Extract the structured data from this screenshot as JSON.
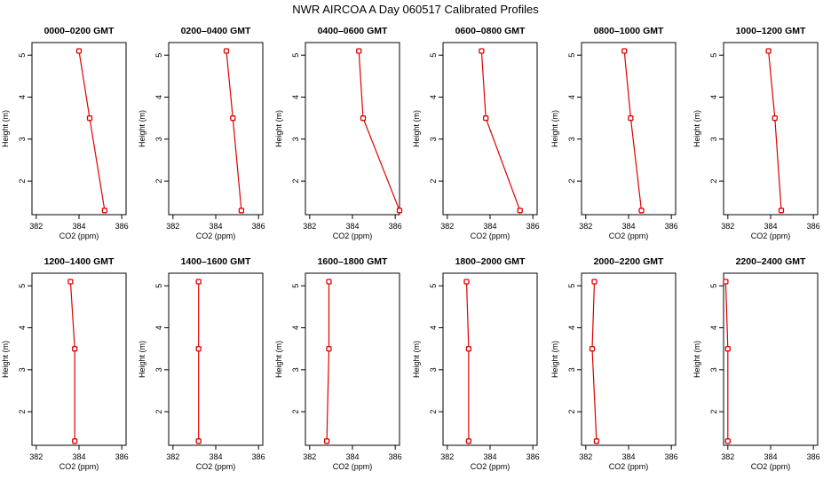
{
  "title": "NWR AIRCOA A  Day 060517  Calibrated Profiles",
  "colors": {
    "series": "#dd0000",
    "background": "#ffffff",
    "axes": "#000000"
  },
  "chart_data": [
    {
      "type": "line",
      "title": "0000–0200 GMT",
      "xlabel": "CO2 (ppm)",
      "ylabel": "Height (m)",
      "xlim": [
        381.8,
        386.2
      ],
      "ylim": [
        1.2,
        5.3
      ],
      "xticks": [
        "382",
        "384",
        "386"
      ],
      "yticks": [
        "2",
        "3",
        "4",
        "5"
      ],
      "points": [
        {
          "x": 384.0,
          "y": 5.1
        },
        {
          "x": 384.5,
          "y": 3.5
        },
        {
          "x": 385.2,
          "y": 1.3
        }
      ]
    },
    {
      "type": "line",
      "title": "0200–0400 GMT",
      "xlabel": "CO2 (ppm)",
      "ylabel": "Height (m)",
      "xlim": [
        381.8,
        386.2
      ],
      "ylim": [
        1.2,
        5.3
      ],
      "xticks": [
        "382",
        "384",
        "386"
      ],
      "yticks": [
        "2",
        "3",
        "4",
        "5"
      ],
      "points": [
        {
          "x": 384.5,
          "y": 5.1
        },
        {
          "x": 384.8,
          "y": 3.5
        },
        {
          "x": 385.2,
          "y": 1.3
        }
      ]
    },
    {
      "type": "line",
      "title": "0400–0600 GMT",
      "xlabel": "CO2 (ppm)",
      "ylabel": "Height (m)",
      "xlim": [
        381.8,
        386.2
      ],
      "ylim": [
        1.2,
        5.3
      ],
      "xticks": [
        "382",
        "384",
        "386"
      ],
      "yticks": [
        "2",
        "3",
        "4",
        "5"
      ],
      "points": [
        {
          "x": 384.3,
          "y": 5.1
        },
        {
          "x": 384.5,
          "y": 3.5
        },
        {
          "x": 386.2,
          "y": 1.3
        }
      ]
    },
    {
      "type": "line",
      "title": "0600–0800 GMT",
      "xlabel": "CO2 (ppm)",
      "ylabel": "Height (m)",
      "xlim": [
        381.8,
        386.2
      ],
      "ylim": [
        1.2,
        5.3
      ],
      "xticks": [
        "382",
        "384",
        "386"
      ],
      "yticks": [
        "2",
        "3",
        "4",
        "5"
      ],
      "points": [
        {
          "x": 383.6,
          "y": 5.1
        },
        {
          "x": 383.8,
          "y": 3.5
        },
        {
          "x": 385.4,
          "y": 1.3
        }
      ]
    },
    {
      "type": "line",
      "title": "0800–1000 GMT",
      "xlabel": "CO2 (ppm)",
      "ylabel": "Height (m)",
      "xlim": [
        381.8,
        386.2
      ],
      "ylim": [
        1.2,
        5.3
      ],
      "xticks": [
        "382",
        "384",
        "386"
      ],
      "yticks": [
        "2",
        "3",
        "4",
        "5"
      ],
      "points": [
        {
          "x": 383.8,
          "y": 5.1
        },
        {
          "x": 384.1,
          "y": 3.5
        },
        {
          "x": 384.6,
          "y": 1.3
        }
      ]
    },
    {
      "type": "line",
      "title": "1000–1200 GMT",
      "xlabel": "CO2 (ppm)",
      "ylabel": "Height (m)",
      "xlim": [
        381.8,
        386.2
      ],
      "ylim": [
        1.2,
        5.3
      ],
      "xticks": [
        "382",
        "384",
        "386"
      ],
      "yticks": [
        "2",
        "3",
        "4",
        "5"
      ],
      "points": [
        {
          "x": 383.9,
          "y": 5.1
        },
        {
          "x": 384.2,
          "y": 3.5
        },
        {
          "x": 384.5,
          "y": 1.3
        }
      ]
    },
    {
      "type": "line",
      "title": "1200–1400 GMT",
      "xlabel": "CO2 (ppm)",
      "ylabel": "Height (m)",
      "xlim": [
        381.8,
        386.2
      ],
      "ylim": [
        1.2,
        5.3
      ],
      "xticks": [
        "382",
        "384",
        "386"
      ],
      "yticks": [
        "2",
        "3",
        "4",
        "5"
      ],
      "points": [
        {
          "x": 383.6,
          "y": 5.1
        },
        {
          "x": 383.8,
          "y": 3.5
        },
        {
          "x": 383.8,
          "y": 1.3
        }
      ]
    },
    {
      "type": "line",
      "title": "1400–1600 GMT",
      "xlabel": "CO2 (ppm)",
      "ylabel": "Height (m)",
      "xlim": [
        381.8,
        386.2
      ],
      "ylim": [
        1.2,
        5.3
      ],
      "xticks": [
        "382",
        "384",
        "386"
      ],
      "yticks": [
        "2",
        "3",
        "4",
        "5"
      ],
      "points": [
        {
          "x": 383.2,
          "y": 5.1
        },
        {
          "x": 383.2,
          "y": 3.5
        },
        {
          "x": 383.2,
          "y": 1.3
        }
      ]
    },
    {
      "type": "line",
      "title": "1600–1800 GMT",
      "xlabel": "CO2 (ppm)",
      "ylabel": "Height (m)",
      "xlim": [
        381.8,
        386.2
      ],
      "ylim": [
        1.2,
        5.3
      ],
      "xticks": [
        "382",
        "384",
        "386"
      ],
      "yticks": [
        "2",
        "3",
        "4",
        "5"
      ],
      "points": [
        {
          "x": 382.9,
          "y": 5.1
        },
        {
          "x": 382.9,
          "y": 3.5
        },
        {
          "x": 382.8,
          "y": 1.3
        }
      ]
    },
    {
      "type": "line",
      "title": "1800–2000 GMT",
      "xlabel": "CO2 (ppm)",
      "ylabel": "Height (m)",
      "xlim": [
        381.8,
        386.2
      ],
      "ylim": [
        1.2,
        5.3
      ],
      "xticks": [
        "382",
        "384",
        "386"
      ],
      "yticks": [
        "2",
        "3",
        "4",
        "5"
      ],
      "points": [
        {
          "x": 382.9,
          "y": 5.1
        },
        {
          "x": 383.0,
          "y": 3.5
        },
        {
          "x": 383.0,
          "y": 1.3
        }
      ]
    },
    {
      "type": "line",
      "title": "2000–2200 GMT",
      "xlabel": "CO2 (ppm)",
      "ylabel": "Height (m)",
      "xlim": [
        381.8,
        386.2
      ],
      "ylim": [
        1.2,
        5.3
      ],
      "xticks": [
        "382",
        "384",
        "386"
      ],
      "yticks": [
        "2",
        "3",
        "4",
        "5"
      ],
      "points": [
        {
          "x": 382.4,
          "y": 5.1
        },
        {
          "x": 382.3,
          "y": 3.5
        },
        {
          "x": 382.5,
          "y": 1.3
        }
      ]
    },
    {
      "type": "line",
      "title": "2200–2400 GMT",
      "xlabel": "CO2 (ppm)",
      "ylabel": "Height (m)",
      "xlim": [
        381.8,
        386.2
      ],
      "ylim": [
        1.2,
        5.3
      ],
      "xticks": [
        "382",
        "384",
        "386"
      ],
      "yticks": [
        "2",
        "3",
        "4",
        "5"
      ],
      "points": [
        {
          "x": 381.9,
          "y": 5.1
        },
        {
          "x": 382.0,
          "y": 3.5
        },
        {
          "x": 382.0,
          "y": 1.3
        }
      ]
    }
  ]
}
